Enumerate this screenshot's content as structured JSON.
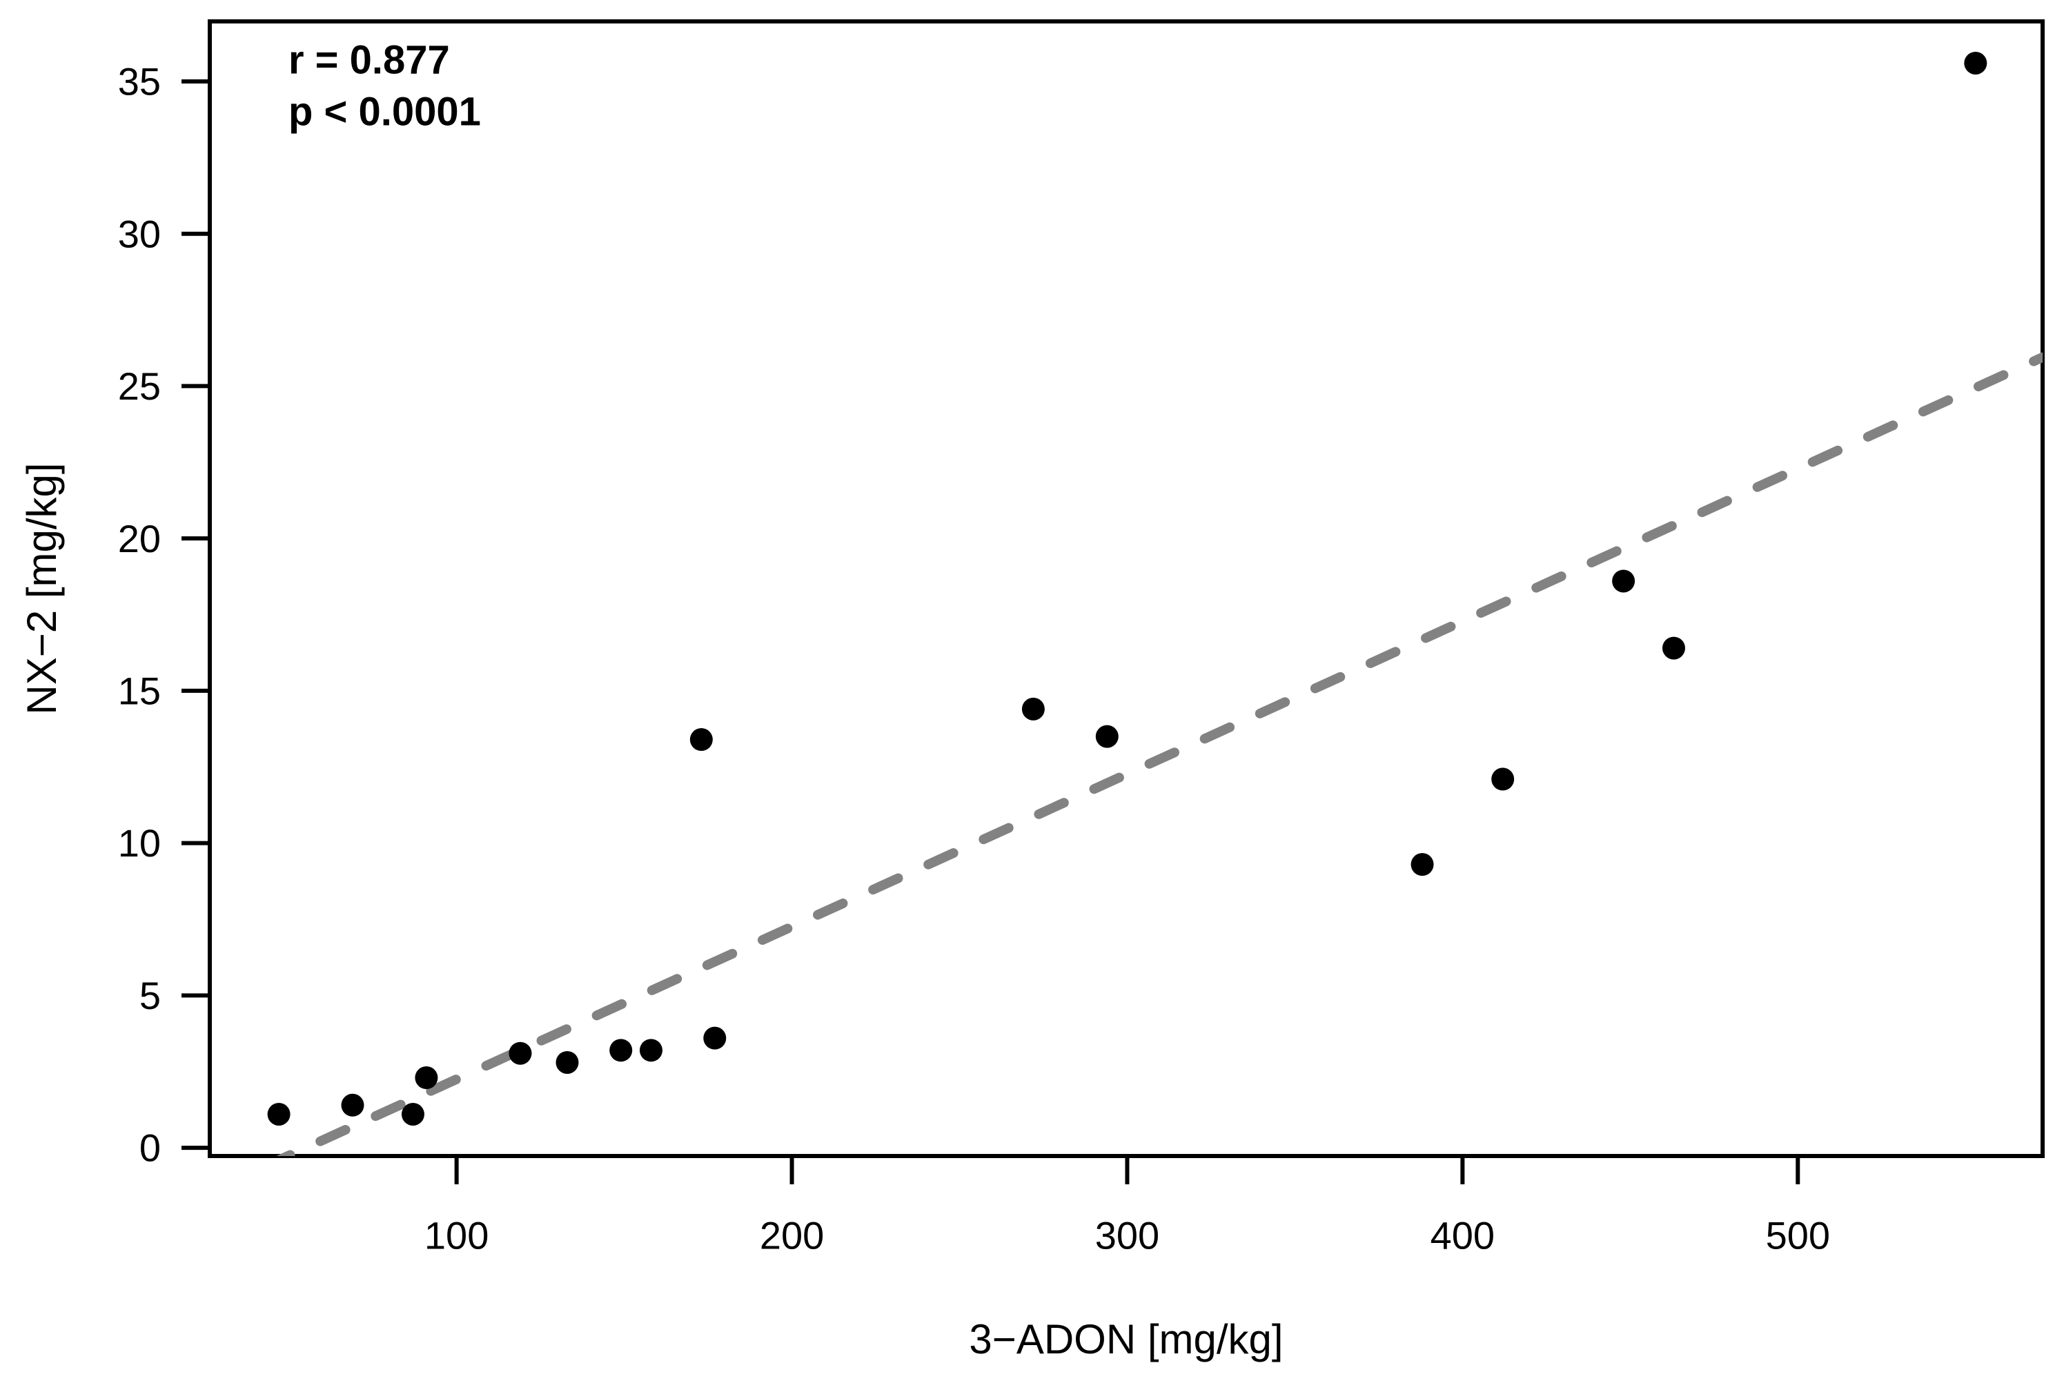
{
  "figure": {
    "background": "#ffffff",
    "foreground": "#000000"
  },
  "chart_data": {
    "type": "scatter",
    "title": "",
    "xlabel": "3−ADON [mg/kg]",
    "ylabel": "NX−2 [mg/kg]",
    "x_ticks": [
      100,
      200,
      300,
      400,
      500
    ],
    "y_ticks": [
      0,
      5,
      10,
      15,
      20,
      25,
      30,
      35
    ],
    "xlim": [
      26.4,
      573.0
    ],
    "ylim": [
      -0.27,
      36.97
    ],
    "grid": false,
    "legend_position": "none",
    "point_color": "#000000",
    "point_radius_px": 16.5,
    "points": [
      {
        "x": 47,
        "y": 1.1
      },
      {
        "x": 69,
        "y": 1.4
      },
      {
        "x": 87,
        "y": 1.1
      },
      {
        "x": 91,
        "y": 2.3
      },
      {
        "x": 119,
        "y": 3.1
      },
      {
        "x": 133,
        "y": 2.8
      },
      {
        "x": 149,
        "y": 3.2
      },
      {
        "x": 158,
        "y": 3.2
      },
      {
        "x": 173,
        "y": 13.4
      },
      {
        "x": 177,
        "y": 3.6
      },
      {
        "x": 272,
        "y": 14.4
      },
      {
        "x": 294,
        "y": 13.5
      },
      {
        "x": 388,
        "y": 9.3
      },
      {
        "x": 412,
        "y": 12.1
      },
      {
        "x": 448,
        "y": 18.6
      },
      {
        "x": 463,
        "y": 16.4
      },
      {
        "x": 553,
        "y": 35.6
      }
    ],
    "trendline": {
      "slope": 0.0501,
      "intercept": -2.76,
      "style": "dashed",
      "color": "#828282"
    },
    "annotation": {
      "lines": [
        "r = 0.877",
        "p < 0.0001"
      ]
    }
  }
}
